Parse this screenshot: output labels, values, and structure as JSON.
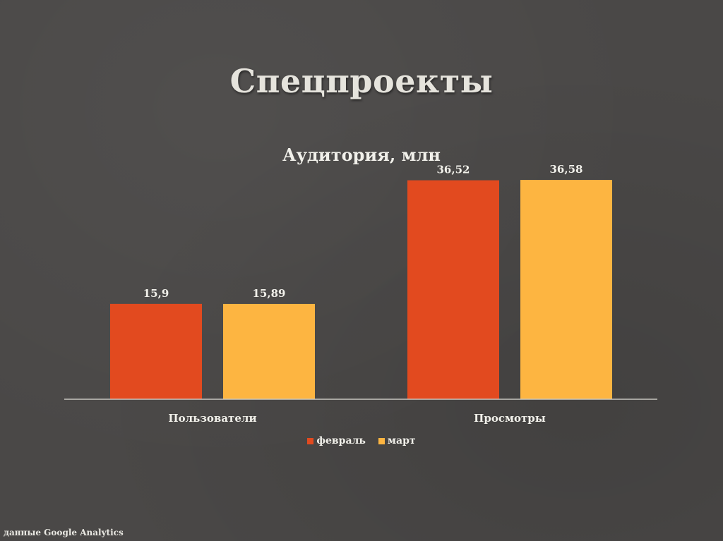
{
  "slide": {
    "title": "Спецпроекты",
    "source_note": "данные Google Analytics"
  },
  "colors": {
    "background": "#4a4847",
    "february": "#e24a1f",
    "march": "#fdb541",
    "axis": "#c8c6c0",
    "text": "#f1f0ea"
  },
  "chart_data": {
    "type": "bar",
    "title": "Аудитория, млн",
    "xlabel": "",
    "ylabel": "",
    "categories": [
      "Пользователи",
      "Просмотры"
    ],
    "series": [
      {
        "name": "февраль",
        "values": [
          15.9,
          36.52
        ],
        "labels": [
          "15,9",
          "36,52"
        ]
      },
      {
        "name": "март",
        "values": [
          15.89,
          36.58
        ],
        "labels": [
          "15,89",
          "36,58"
        ]
      }
    ],
    "ylim": [
      0,
      40
    ],
    "grid": false,
    "legend_position": "bottom"
  }
}
